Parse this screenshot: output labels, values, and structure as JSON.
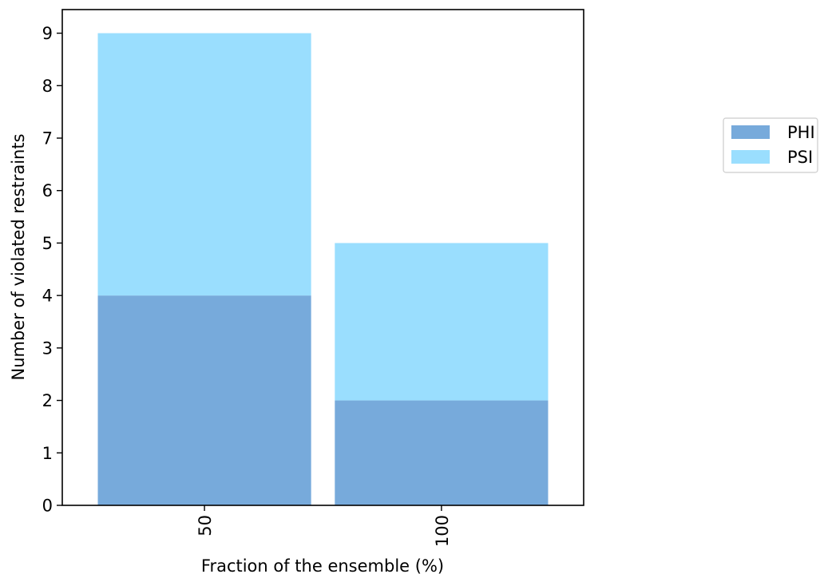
{
  "chart_data": {
    "type": "bar",
    "stacked": true,
    "categories": [
      "50",
      "100"
    ],
    "series": [
      {
        "name": "PHI",
        "values": [
          4,
          2
        ],
        "color": "#77aadb"
      },
      {
        "name": "PSI",
        "values": [
          5,
          3
        ],
        "color": "#9adefe"
      }
    ],
    "xlabel": "Fraction of the ensemble (%)",
    "ylabel": "Number of violated restraints",
    "ylim": [
      0,
      9.45
    ],
    "yticks": [
      0,
      1,
      2,
      3,
      4,
      5,
      6,
      7,
      8,
      9
    ],
    "grid": false,
    "legend_position": "right"
  }
}
